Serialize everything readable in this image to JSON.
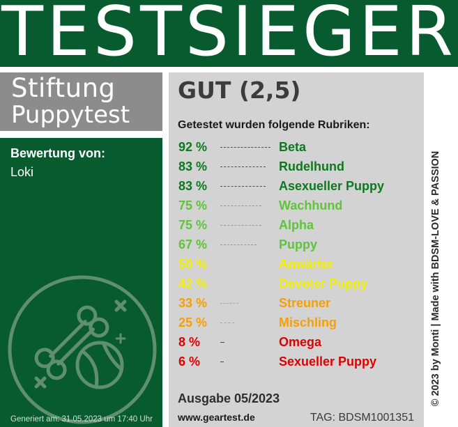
{
  "header": {
    "title": "TESTSIEGER"
  },
  "logo": {
    "line1": "Stiftung",
    "line2": "Puppytest"
  },
  "rating": {
    "label": "Bewertung von:",
    "name": "Loki"
  },
  "footer": {
    "generated": "Generiert am: 31.05.2023 um 17:40 Uhr"
  },
  "result": {
    "grade": "GUT (2,5)",
    "categories_title": "Getestet wurden folgende Rubriken:",
    "categories": [
      {
        "percent": "92 %",
        "value": 92,
        "name": "Beta",
        "color": "#0b7a1c"
      },
      {
        "percent": "83 %",
        "value": 83,
        "name": "Rudelhund",
        "color": "#0b7a1c"
      },
      {
        "percent": "83 %",
        "value": 83,
        "name": "Asexueller Puppy",
        "color": "#0b7a1c"
      },
      {
        "percent": "75 %",
        "value": 75,
        "name": "Wachhund",
        "color": "#5ec43a"
      },
      {
        "percent": "75 %",
        "value": 75,
        "name": "Alpha",
        "color": "#5ec43a"
      },
      {
        "percent": "67 %",
        "value": 67,
        "name": "Puppy",
        "color": "#5ec43a"
      },
      {
        "percent": "50 %",
        "value": 50,
        "name": "Anwärter",
        "color": "#f2f200"
      },
      {
        "percent": "42 %",
        "value": 42,
        "name": "Devoter Puppy",
        "color": "#f2f200"
      },
      {
        "percent": "33 %",
        "value": 33,
        "name": "Streuner",
        "color": "#f5a000"
      },
      {
        "percent": "25 %",
        "value": 25,
        "name": "Mischling",
        "color": "#f5a000"
      },
      {
        "percent": "8 %",
        "value": 8,
        "name": "Omega",
        "color": "#e00000"
      },
      {
        "percent": "6 %",
        "value": 6,
        "name": "Sexueller Puppy",
        "color": "#e00000"
      }
    ],
    "issue": "Ausgabe 05/2023",
    "website": "www.geartest.de",
    "tag": "TAG: BDSM1001351"
  },
  "credit": "© 2023 by Monti | Made with BDSM-LOVE & PASSION",
  "colors": {
    "brand_green": "#075b2e",
    "logo_grey": "#8c8c8c",
    "panel_grey": "#d3d3d3"
  },
  "icons": {
    "emblem": "bone-and-ball-icon"
  }
}
